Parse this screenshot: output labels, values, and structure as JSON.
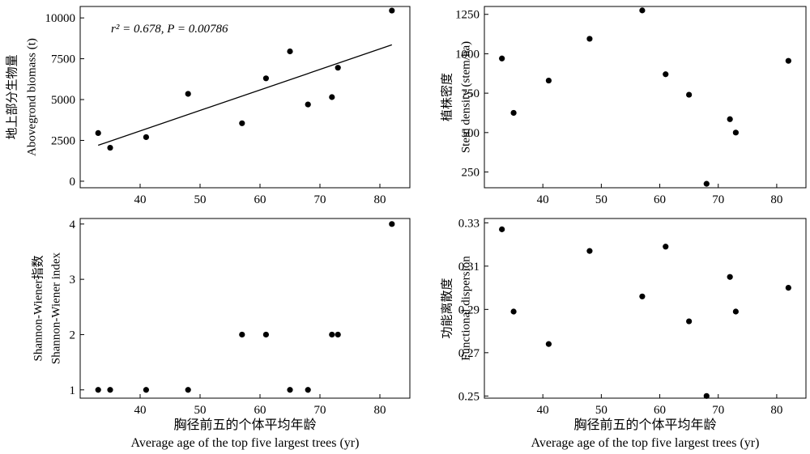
{
  "chart_data": [
    {
      "type": "scatter",
      "panel": "top-left",
      "ylabel_cn": "地上部分生物量",
      "ylabel_en": "Abovegrond biomass (t)",
      "annotation": "r² = 0.678,  P = 0.00786",
      "xlim": [
        30,
        85
      ],
      "ylim": [
        -400,
        10700
      ],
      "xticks": [
        40,
        50,
        60,
        70,
        80
      ],
      "yticks": [
        0,
        2500,
        5000,
        7500,
        10000
      ],
      "points": [
        {
          "x": 33,
          "y": 2950
        },
        {
          "x": 35,
          "y": 2050
        },
        {
          "x": 41,
          "y": 2700
        },
        {
          "x": 48,
          "y": 5350
        },
        {
          "x": 57,
          "y": 3550
        },
        {
          "x": 61,
          "y": 6300
        },
        {
          "x": 65,
          "y": 7950
        },
        {
          "x": 68,
          "y": 4700
        },
        {
          "x": 72,
          "y": 5150
        },
        {
          "x": 73,
          "y": 6950
        },
        {
          "x": 82,
          "y": 10450
        }
      ],
      "trendline": {
        "x0": 33,
        "y0": 2200,
        "x1": 82,
        "y1": 8350
      }
    },
    {
      "type": "scatter",
      "panel": "top-right",
      "ylabel_cn": "植株密度",
      "ylabel_en": "Stem density (stem/ha)",
      "xlim": [
        30,
        85
      ],
      "ylim": [
        150,
        1300
      ],
      "xticks": [
        40,
        50,
        60,
        70,
        80
      ],
      "yticks": [
        250,
        500,
        750,
        1000,
        1250
      ],
      "points": [
        {
          "x": 33,
          "y": 970
        },
        {
          "x": 35,
          "y": 625
        },
        {
          "x": 41,
          "y": 830
        },
        {
          "x": 48,
          "y": 1095
        },
        {
          "x": 57,
          "y": 1275
        },
        {
          "x": 61,
          "y": 870
        },
        {
          "x": 65,
          "y": 740
        },
        {
          "x": 68,
          "y": 175
        },
        {
          "x": 72,
          "y": 585
        },
        {
          "x": 73,
          "y": 500
        },
        {
          "x": 82,
          "y": 955
        }
      ]
    },
    {
      "type": "scatter",
      "panel": "bottom-left",
      "ylabel_cn": "Shannon-Wiener指数",
      "ylabel_en": "Shannon-Wiener index",
      "xlabel_cn": "胸径前五的个体平均年龄",
      "xlabel_en": "Average age of the top five largest trees (yr)",
      "xlim": [
        30,
        85
      ],
      "ylim": [
        0.85,
        4.1
      ],
      "xticks": [
        40,
        50,
        60,
        70,
        80
      ],
      "yticks": [
        1,
        2,
        3,
        4
      ],
      "points": [
        {
          "x": 33,
          "y": 1
        },
        {
          "x": 35,
          "y": 1
        },
        {
          "x": 41,
          "y": 1
        },
        {
          "x": 48,
          "y": 1
        },
        {
          "x": 57,
          "y": 2
        },
        {
          "x": 61,
          "y": 2
        },
        {
          "x": 65,
          "y": 1
        },
        {
          "x": 68,
          "y": 1
        },
        {
          "x": 72,
          "y": 2
        },
        {
          "x": 73,
          "y": 2
        },
        {
          "x": 82,
          "y": 4
        }
      ]
    },
    {
      "type": "scatter",
      "panel": "bottom-right",
      "ylabel_cn": "功能离散度",
      "ylabel_en": "Functional dispersion",
      "xlabel_cn": "胸径前五的个体平均年龄",
      "xlabel_en": "Average age of the top five largest trees (yr)",
      "xlim": [
        30,
        85
      ],
      "ylim": [
        0.249,
        0.332
      ],
      "xticks": [
        40,
        50,
        60,
        70,
        80
      ],
      "yticks": [
        0.25,
        0.27,
        0.29,
        0.31,
        0.33
      ],
      "tick_labels": [
        "0.25",
        "0.27",
        "0.29",
        "0.31",
        "0.33"
      ],
      "points": [
        {
          "x": 33,
          "y": 0.327
        },
        {
          "x": 35,
          "y": 0.289
        },
        {
          "x": 41,
          "y": 0.274
        },
        {
          "x": 48,
          "y": 0.317
        },
        {
          "x": 57,
          "y": 0.296
        },
        {
          "x": 61,
          "y": 0.319
        },
        {
          "x": 65,
          "y": 0.2845
        },
        {
          "x": 68,
          "y": 0.25
        },
        {
          "x": 72,
          "y": 0.305
        },
        {
          "x": 73,
          "y": 0.289
        },
        {
          "x": 82,
          "y": 0.3
        }
      ]
    }
  ]
}
